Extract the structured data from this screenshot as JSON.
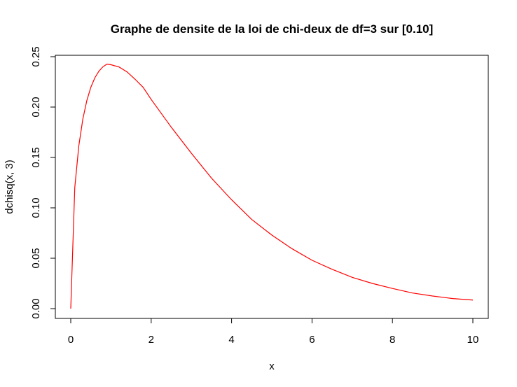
{
  "chart_data": {
    "type": "line",
    "title": "Graphe de densite de la loi de chi-deux de df=3 sur [0.10]",
    "xlabel": "x",
    "ylabel": "dchisq(x, 3)",
    "xlim": [
      0,
      10
    ],
    "ylim": [
      0,
      0.25
    ],
    "xticks": [
      "0",
      "2",
      "4",
      "6",
      "8",
      "10"
    ],
    "yticks": [
      "0.00",
      "0.05",
      "0.10",
      "0.15",
      "0.20",
      "0.25"
    ],
    "grid": false,
    "line_color": "#ff0000",
    "series": [
      {
        "x": [
          0,
          0.1,
          0.2,
          0.3,
          0.4,
          0.5,
          0.6,
          0.7,
          0.8,
          0.9,
          1.0,
          1.2,
          1.4,
          1.6,
          1.8,
          2.0,
          2.5,
          3.0,
          3.5,
          4.0,
          4.5,
          5.0,
          5.5,
          6.0,
          6.5,
          7.0,
          7.5,
          8.0,
          8.5,
          9.0,
          9.5,
          10.0
        ],
        "y": [
          0,
          0.1201,
          0.1614,
          0.188,
          0.2065,
          0.2197,
          0.2291,
          0.2356,
          0.24,
          0.2426,
          0.242,
          0.2398,
          0.2349,
          0.2276,
          0.2196,
          0.2076,
          0.18,
          0.1542,
          0.1295,
          0.108,
          0.0885,
          0.073,
          0.0595,
          0.048,
          0.039,
          0.031,
          0.025,
          0.02,
          0.0155,
          0.0125,
          0.01,
          0.0085
        ]
      }
    ]
  }
}
